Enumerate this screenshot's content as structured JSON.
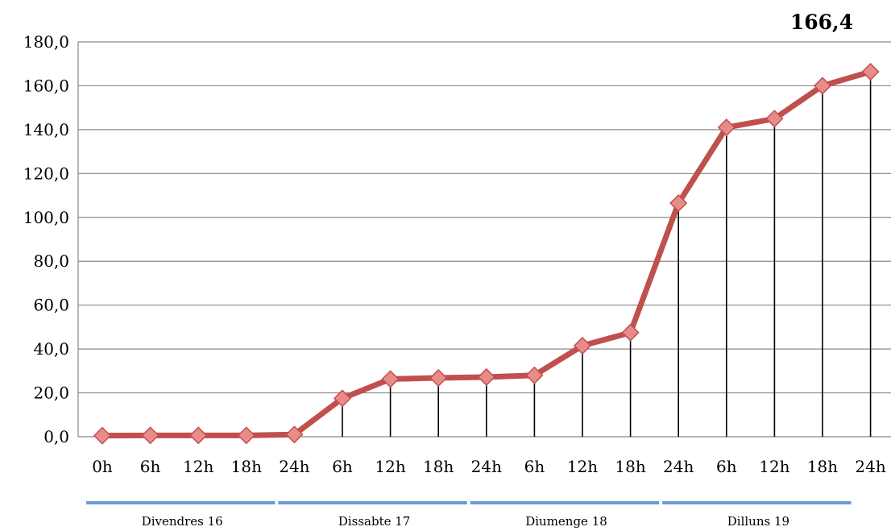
{
  "chart_data": {
    "type": "line",
    "title": "",
    "xlabel": "",
    "ylabel": "",
    "x": [
      "0h",
      "6h",
      "12h",
      "18h",
      "24h",
      "6h",
      "12h",
      "18h",
      "24h",
      "6h",
      "12h",
      "18h",
      "24h",
      "6h",
      "12h",
      "18h",
      "24h"
    ],
    "series": [
      {
        "values": [
          0.5,
          0.6,
          0.6,
          0.6,
          1.0,
          17.5,
          26.3,
          26.8,
          27.2,
          28.0,
          41.5,
          47.5,
          106.5,
          141.0,
          145.0,
          160.0,
          166.4
        ]
      }
    ],
    "ylim": [
      0,
      180
    ],
    "yticks": [
      "0,0",
      "20,0",
      "40,0",
      "60,0",
      "80,0",
      "100,0",
      "120,0",
      "140,0",
      "160,0",
      "180,0"
    ],
    "grid": true,
    "legend": "none",
    "drop_lines": true,
    "groups": [
      {
        "label": "Divendres 16",
        "start": 0,
        "end": 4
      },
      {
        "label": "Dissabte 17",
        "start": 4,
        "end": 8
      },
      {
        "label": "Diumenge 18",
        "start": 8,
        "end": 12
      },
      {
        "label": "Dilluns 19",
        "start": 12,
        "end": 16
      }
    ],
    "callout": {
      "text": "166,4",
      "index": 16
    },
    "colors": {
      "line": "#c0504d",
      "marker_fill": "#e98b89",
      "marker_stroke": "#c0504d",
      "group_bar": "#6a9ad0",
      "grid": "#888888"
    }
  }
}
